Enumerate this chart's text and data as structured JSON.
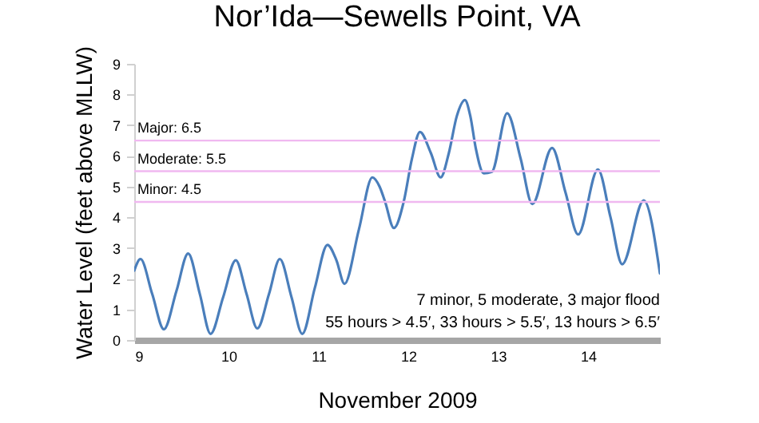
{
  "chart_data": {
    "type": "line",
    "title": "Nor’Ida—Sewells Point, VA",
    "xlabel": "November 2009",
    "ylabel": "Water Level (feet above MLLW)",
    "x": [
      8.95,
      9.02,
      9.15,
      9.28,
      9.42,
      9.55,
      9.68,
      9.8,
      9.94,
      10.08,
      10.2,
      10.32,
      10.45,
      10.57,
      10.7,
      10.82,
      10.96,
      11.1,
      11.2,
      11.29,
      11.45,
      11.6,
      11.68,
      11.74,
      11.84,
      11.95,
      12.04,
      12.13,
      12.25,
      12.36,
      12.45,
      12.54,
      12.63,
      12.69,
      12.75,
      12.84,
      12.93,
      13.1,
      13.25,
      13.38,
      13.6,
      13.75,
      13.89,
      14.11,
      14.25,
      14.38,
      14.62,
      14.8
    ],
    "series": [
      {
        "color": "#4a7ebb",
        "values": [
          2.26,
          2.64,
          1.5,
          0.35,
          1.6,
          2.82,
          1.5,
          0.2,
          1.4,
          2.6,
          1.5,
          0.38,
          1.5,
          2.64,
          1.4,
          0.2,
          1.7,
          3.1,
          2.6,
          1.83,
          3.6,
          5.3,
          5.0,
          4.52,
          3.65,
          4.52,
          5.9,
          6.78,
          6.1,
          5.3,
          6.08,
          7.3,
          7.82,
          7.3,
          6.26,
          5.43,
          5.48,
          7.39,
          5.91,
          4.43,
          6.26,
          4.8,
          3.44,
          5.56,
          4.0,
          2.47,
          4.55,
          2.17
        ]
      }
    ],
    "xlim": [
      8.95,
      14.8
    ],
    "xticks": [
      9,
      10,
      11,
      12,
      13,
      14
    ],
    "ylim": [
      0,
      9
    ],
    "yticks": [
      0,
      1,
      2,
      3,
      4,
      5,
      6,
      7,
      8,
      9
    ],
    "grid": false,
    "marker": "none",
    "line_style": "solid",
    "ref_lines": [
      {
        "axis": "y",
        "value": 6.5,
        "label": "Major: 6.5",
        "color": "#f0b8f0"
      },
      {
        "axis": "y",
        "value": 5.5,
        "label": "Moderate: 5.5",
        "color": "#f0b8f0"
      },
      {
        "axis": "y",
        "value": 4.5,
        "label": "Minor: 4.5",
        "color": "#f0b8f0"
      }
    ],
    "annotations": [
      "7 minor, 5 moderate, 3 major flood",
      "55 hours > 4.5′, 33 hours > 5.5′, 13 hours > 6.5′"
    ]
  }
}
